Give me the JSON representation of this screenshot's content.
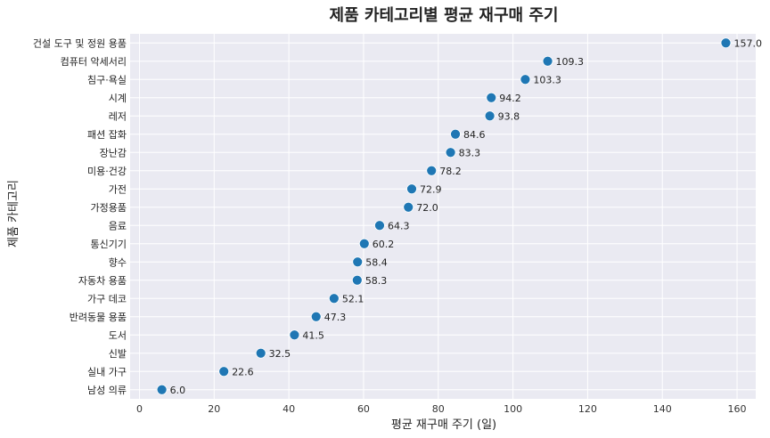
{
  "chart_data": {
    "type": "scatter",
    "title": "제품 카테고리별 평균 재구매 주기",
    "xlabel": "평균 재구매 주기 (일)",
    "ylabel": "제품 카테고리",
    "xlim": [
      -2.5,
      165
    ],
    "xticks": [
      0,
      20,
      40,
      60,
      80,
      100,
      120,
      140,
      160
    ],
    "grid": true,
    "colors": {
      "point": "#1f77b4",
      "plot_bg": "#eaeaf2",
      "grid": "#ffffff"
    },
    "categories": [
      "건설 도구 및 정원 용품",
      "컴퓨터 악세서리",
      "침구·욕실",
      "시계",
      "레저",
      "패션 잡화",
      "장난감",
      "미용·건강",
      "가전",
      "가정용품",
      "음료",
      "통신기기",
      "향수",
      "자동차 용품",
      "가구 데코",
      "반려동물 용품",
      "도서",
      "신발",
      "실내 가구",
      "남성 의류"
    ],
    "values": [
      157.0,
      109.3,
      103.3,
      94.2,
      93.8,
      84.6,
      83.3,
      78.2,
      72.9,
      72.0,
      64.3,
      60.2,
      58.4,
      58.3,
      52.1,
      47.3,
      41.5,
      32.5,
      22.6,
      6.0
    ],
    "value_labels": [
      "157.0",
      "109.3",
      "103.3",
      "94.2",
      "93.8",
      "84.6",
      "83.3",
      "78.2",
      "72.9",
      "72.0",
      "64.3",
      "60.2",
      "58.4",
      "58.3",
      "52.1",
      "47.3",
      "41.5",
      "32.5",
      "22.6",
      "6.0"
    ]
  }
}
